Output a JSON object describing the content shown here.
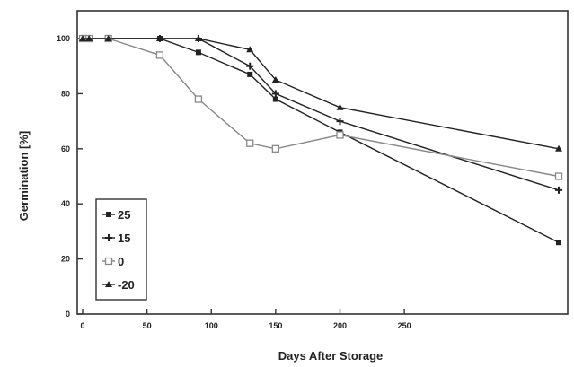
{
  "chart_data": {
    "type": "line",
    "title": "",
    "xlabel": "Days After Storage",
    "ylabel": "Germination [%]",
    "xlim": [
      0,
      370
    ],
    "ylim": [
      0,
      100
    ],
    "xticks": [
      0,
      50,
      100,
      150,
      200,
      250
    ],
    "yticks": [
      0,
      20,
      40,
      60,
      80,
      100
    ],
    "grid": false,
    "legend_position": "bottom-left",
    "series": [
      {
        "name": "25",
        "marker": "filled-square",
        "color": "#222222",
        "x": [
          0,
          5,
          20,
          60,
          90,
          130,
          150,
          200,
          370
        ],
        "y": [
          100,
          100,
          100,
          100,
          95,
          87,
          78,
          66,
          26
        ]
      },
      {
        "name": "15",
        "marker": "plus",
        "color": "#222222",
        "x": [
          0,
          5,
          20,
          60,
          90,
          130,
          150,
          200,
          370
        ],
        "y": [
          100,
          100,
          100,
          100,
          100,
          90,
          80,
          70,
          45
        ]
      },
      {
        "name": "0",
        "marker": "open-square",
        "color": "#888888",
        "x": [
          0,
          5,
          20,
          60,
          90,
          130,
          150,
          200,
          370
        ],
        "y": [
          100,
          100,
          100,
          94,
          78,
          62,
          60,
          65,
          50
        ]
      },
      {
        "name": "-20",
        "marker": "triangle",
        "color": "#222222",
        "x": [
          0,
          5,
          20,
          60,
          90,
          130,
          150,
          200,
          370
        ],
        "y": [
          100,
          100,
          100,
          100,
          100,
          96,
          85,
          75,
          60
        ]
      }
    ]
  }
}
